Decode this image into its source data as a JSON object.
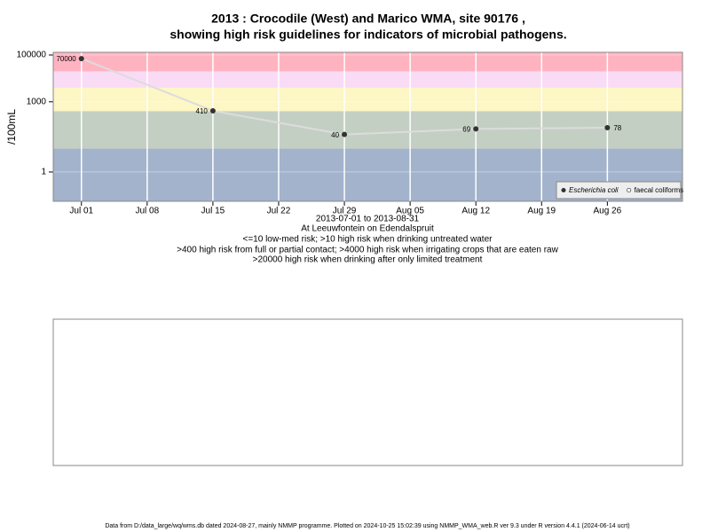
{
  "chart_data": {
    "type": "line",
    "title": "2013 : Crocodile (West) and Marico WMA, site 90176 ,",
    "subtitle": "showing high risk guidelines for indicators of microbial pathogens.",
    "y_label": "/100mL",
    "x_label": "2013-07-01 to 2013-08-31",
    "notes": [
      "At Leeuwfontein on Edendalspruit",
      "<=10 low-med risk; >10 high risk when drinking untreated water",
      ">400 high risk from full or partial contact; >4000 high risk when irrigating crops that are eaten raw",
      ">20000 high risk when drinking after only limited treatment"
    ],
    "footer": "Data from D:/data_large/wq/wms.db dated 2024-08-27, mainly NMMP programme. Plotted on 2024-10-25 15:02:39 using NMMP_WMA_web.R ver 9.3 under R version 4.4.1 (2024-06-14 ucrt)",
    "x": [
      "2013-07-01",
      "2013-07-15",
      "2013-07-29",
      "2013-08-12",
      "2013-08-26"
    ],
    "series": [
      {
        "name": "Escherichia coli",
        "color": "#333333",
        "values": [
          70000,
          410,
          40,
          69,
          78
        ],
        "value_labels": [
          "70000",
          "410",
          "40",
          "69",
          "78"
        ]
      },
      {
        "name": "faecal coliforms",
        "color": "#ffffff",
        "values": [
          null,
          null,
          null,
          null,
          null
        ]
      }
    ],
    "line_color": "#dcdcdc",
    "log_scale": true,
    "ylim": [
      0.056,
      130000
    ],
    "yticks": [
      1,
      1000,
      100000
    ],
    "xlim": [
      "2013-06-28",
      "2013-09-03"
    ],
    "xticks": [
      {
        "value": "2013-07-01",
        "label": "Jul 01"
      },
      {
        "value": "2013-07-08",
        "label": "Jul 08"
      },
      {
        "value": "2013-07-15",
        "label": "Jul 15"
      },
      {
        "value": "2013-07-22",
        "label": "Jul 22"
      },
      {
        "value": "2013-07-29",
        "label": "Jul 29"
      },
      {
        "value": "2013-08-05",
        "label": "Aug 05"
      },
      {
        "value": "2013-08-12",
        "label": "Aug 12"
      },
      {
        "value": "2013-08-19",
        "label": "Aug 19"
      },
      {
        "value": "2013-08-26",
        "label": "Aug 26"
      }
    ],
    "grid": true,
    "legend": "lower right",
    "bands": [
      {
        "from": 0.056,
        "to": 10,
        "color": "#a3b3cc"
      },
      {
        "from": 10,
        "to": 400,
        "color": "#c4cfc4"
      },
      {
        "from": 400,
        "to": 4000,
        "color": "#fdf6c5"
      },
      {
        "from": 4000,
        "to": 20000,
        "color": "#fadbf5"
      },
      {
        "from": 20000,
        "to": 130000,
        "color": "#ffb3c1"
      }
    ]
  }
}
